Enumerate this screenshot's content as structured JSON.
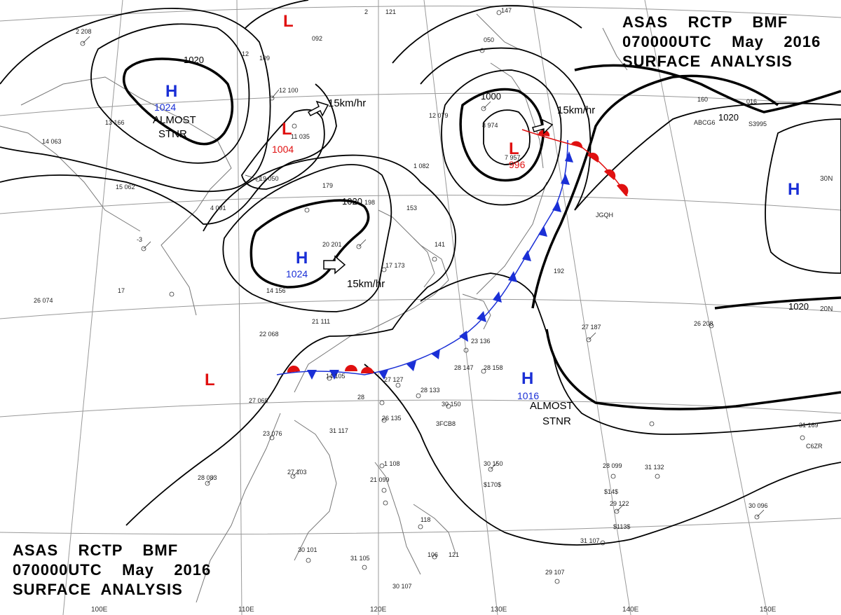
{
  "title": {
    "line1": "ASAS    RCTP    BMF",
    "line2": "070000UTC    May    2016",
    "line3": "SURFACE  ANALYSIS"
  },
  "colors": {
    "high": "#1a2fd6",
    "low": "#e01010",
    "isobar": "#000000",
    "grid": "#888888",
    "coast": "#777777"
  },
  "pressure_systems": [
    {
      "type": "H",
      "value": "1024",
      "note": "ALMOST\nSTNR"
    },
    {
      "type": "L",
      "value": "1004"
    },
    {
      "type": "H",
      "value": "1024"
    },
    {
      "type": "L",
      "value": "996"
    },
    {
      "type": "H",
      "value": "1016",
      "note": "ALMOST\nSTNR"
    },
    {
      "type": "H",
      "value": ""
    },
    {
      "type": "L",
      "value": ""
    },
    {
      "type": "L",
      "value": ""
    }
  ],
  "isobar_labels": [
    "1020",
    "1020",
    "1000",
    "1020",
    "1020"
  ],
  "motion_labels": [
    "15km/hr",
    "15km/hr",
    "15km/hr"
  ],
  "latitude_labels": [
    "30N",
    "20N"
  ],
  "longitude_labels": [
    "110E",
    "120E",
    "130E",
    "140E",
    "150E",
    "100E"
  ]
}
